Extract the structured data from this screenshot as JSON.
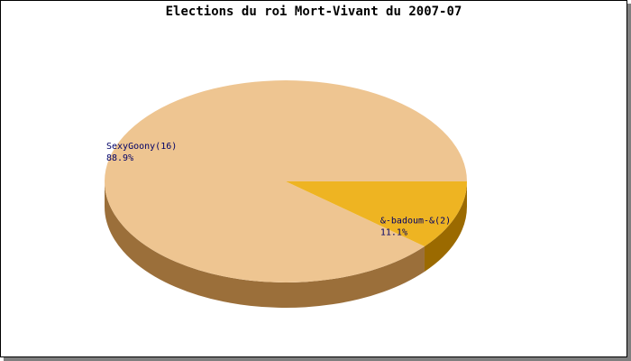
{
  "chart_data": {
    "type": "pie",
    "title": "Elections du roi Mort-Vivant du 2007-07",
    "style": "3d",
    "slices": [
      {
        "label": "SexyGoony(16)",
        "value": 16,
        "percent_label": "88.9%",
        "color": "#EEC591",
        "side_color": "#9B6F3A"
      },
      {
        "label": "&-badoum-&(2)",
        "value": 2,
        "percent_label": "11.1%",
        "color": "#EEB422",
        "side_color": "#9B6A00"
      }
    ]
  }
}
